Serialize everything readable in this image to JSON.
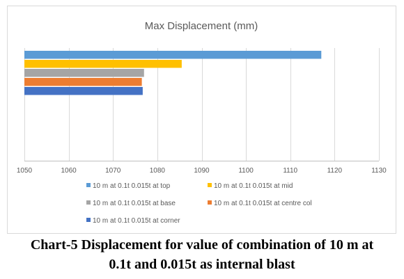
{
  "chart_data": {
    "type": "bar",
    "orientation": "horizontal",
    "title": "Max Displacement (mm)",
    "xlabel": "",
    "ylabel": "",
    "xlim": [
      1050,
      1130
    ],
    "xticks": [
      1050,
      1060,
      1070,
      1080,
      1090,
      1100,
      1110,
      1120,
      1130
    ],
    "grid": true,
    "legend_position": "bottom",
    "series": [
      {
        "name": "10 m at 0.1t 0.015t at top",
        "value": 1117,
        "color": "#5b9bd5"
      },
      {
        "name": "10 m at 0.1t 0.015t at mid",
        "value": 1085.5,
        "color": "#ffc000"
      },
      {
        "name": "10 m at 0.1t 0.015t at base",
        "value": 1077,
        "color": "#a5a5a5"
      },
      {
        "name": "10 m at 0.1t 0.015t at centre col",
        "value": 1076.5,
        "color": "#ed7d31"
      },
      {
        "name": "10  m at 0.1t 0.015t at corner",
        "value": 1076.7,
        "color": "#4472c4"
      }
    ]
  },
  "caption": {
    "line1": "Chart-5 Displacement for value of combination of 10 m at",
    "line2": "0.1t and 0.015t as internal blast"
  }
}
